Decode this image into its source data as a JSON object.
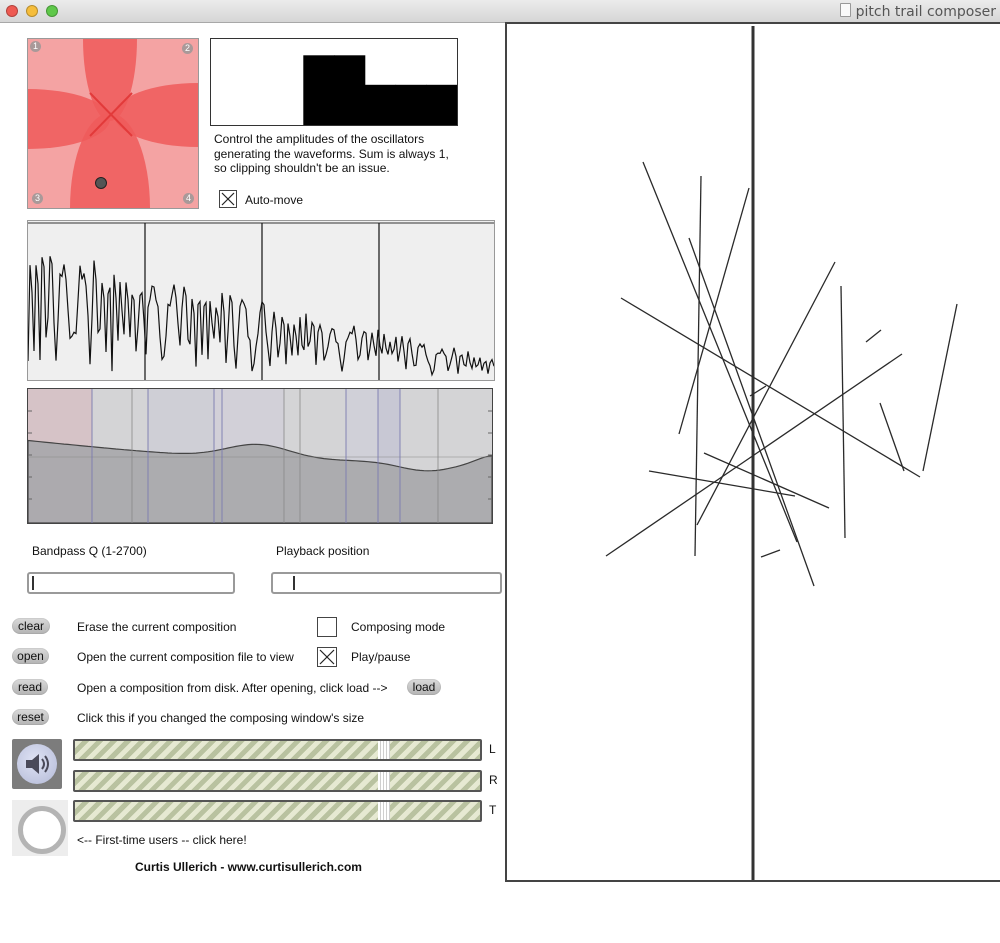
{
  "window": {
    "title": "pitch trail composer"
  },
  "nodes": {
    "labels": [
      "1",
      "2",
      "3",
      "4"
    ]
  },
  "multislider": {
    "values": [
      0,
      0,
      0,
      0.45,
      0.45,
      0.26,
      0.26,
      0.26
    ]
  },
  "amplitude_description": "Control the amplitudes of the oscillators generating the waveforms. Sum is always 1, so clipping shouldn't be an issue.",
  "automove": {
    "label": "Auto-move",
    "checked": true
  },
  "bandpass_q": {
    "label": "Bandpass Q (1-2700)"
  },
  "playback_position": {
    "label": "Playback position"
  },
  "buttons": [
    {
      "label": "clear",
      "desc": "Erase the current composition"
    },
    {
      "label": "open",
      "desc": "Open the current composition file to view"
    },
    {
      "label": "read",
      "desc": "Open a composition from disk. After opening, click load -->"
    },
    {
      "label": "reset",
      "desc": "Click this if you changed the composing window's size"
    }
  ],
  "load_button": "load",
  "composing_mode": {
    "label": "Composing mode",
    "checked": false
  },
  "play_pause": {
    "label": "Play/pause",
    "checked": true
  },
  "gain_sliders": [
    {
      "label": "L",
      "level": 0.77
    },
    {
      "label": "R",
      "level": 0.77
    },
    {
      "label": "T",
      "level": 0.77
    }
  ],
  "first_time": "<-- First-time users -- click here!",
  "credit": "Curtis Ullerich - www.curtisullerich.com",
  "icons": {
    "speaker": "speaker-icon",
    "ring": "help-ring-icon"
  },
  "colors": {
    "node_bg": "#f4a3a3",
    "node_lobe": "#ef5a5a",
    "canvas_line": "#2a2a2a",
    "filter_fill": "#a6a6aa"
  }
}
